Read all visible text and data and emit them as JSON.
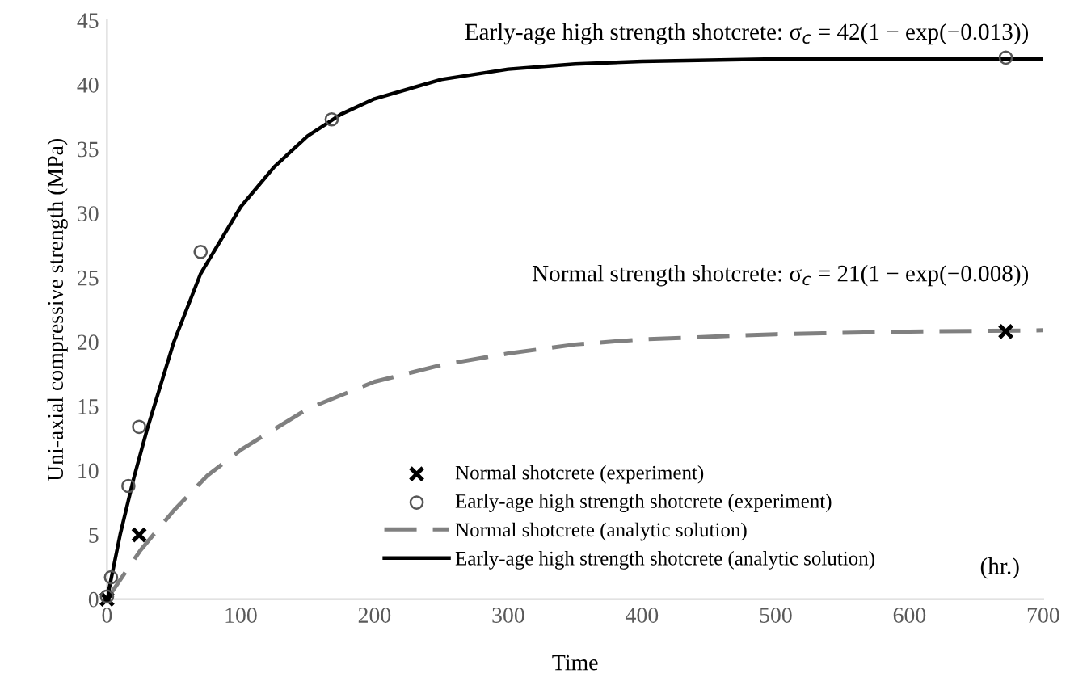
{
  "chart_data": {
    "type": "line",
    "xlabel": "Time",
    "ylabel": "Uni-axial compressive strength (MPa)",
    "xlim": [
      0,
      700
    ],
    "xticks": [
      0,
      100,
      200,
      300,
      400,
      500,
      600,
      700
    ],
    "ylim": [
      0,
      45
    ],
    "yticks": [
      0,
      5,
      10,
      15,
      20,
      25,
      30,
      35,
      40,
      45
    ],
    "grid": false,
    "legend": "bottom right",
    "series": [
      {
        "name": "Normal shotcrete (experiment)",
        "type": "scatter",
        "marker": "cross",
        "color": "#000000",
        "x": [
          0,
          24,
          672
        ],
        "values": [
          0,
          5,
          20.8
        ]
      },
      {
        "name": "Early-age high strength shotcrete (experiment)",
        "type": "scatter",
        "marker": "circle",
        "color": "#555555",
        "x": [
          0,
          3,
          16,
          24,
          70,
          168,
          672
        ],
        "values": [
          0.2,
          1.7,
          8.8,
          13.4,
          27,
          37.3,
          42.1
        ]
      },
      {
        "name": "Normal shotcrete (analytic solution)",
        "line_style": "dashed",
        "color": "#808080",
        "x": [
          0,
          25,
          50,
          75,
          100,
          150,
          200,
          250,
          300,
          350,
          400,
          500,
          600,
          700
        ],
        "values": [
          0,
          3.8,
          6.9,
          9.6,
          11.6,
          14.8,
          16.9,
          18.2,
          19.1,
          19.8,
          20.2,
          20.6,
          20.8,
          20.9
        ]
      },
      {
        "name": "Early-age high strength shotcrete (analytic solution)",
        "line_style": "solid",
        "color": "#000000",
        "x": [
          0,
          10,
          20,
          30,
          50,
          70,
          100,
          125,
          150,
          175,
          200,
          250,
          300,
          350,
          400,
          500,
          600,
          700
        ],
        "values": [
          0,
          5.1,
          9.4,
          13.2,
          20,
          25.3,
          30.5,
          33.6,
          36,
          37.7,
          38.9,
          40.4,
          41.2,
          41.6,
          41.8,
          42,
          42,
          42
        ]
      }
    ],
    "annotations": [
      "Early-age high strength shotcrete: σ$_{c}$ = 42(1 − exp(−0.013))",
      "Normal strength shotcrete: σ$_{c}$ = 21(1 − exp(−0.008))",
      "(hr.)"
    ]
  }
}
